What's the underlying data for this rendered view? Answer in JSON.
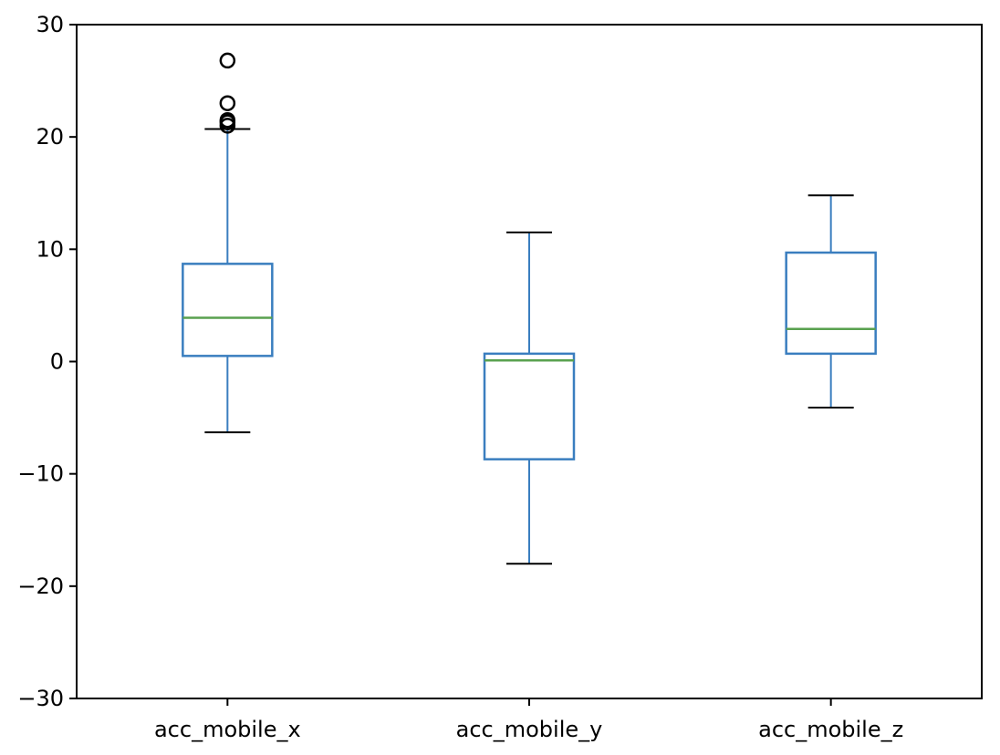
{
  "chart_data": {
    "type": "box",
    "title": "",
    "xlabel": "",
    "ylabel": "",
    "ylim": [
      -30,
      30
    ],
    "yticks": [
      30,
      20,
      10,
      0,
      -10,
      -20,
      -30
    ],
    "ytick_labels": [
      "30",
      "20",
      "10",
      "0",
      "−10",
      "−20",
      "−30"
    ],
    "grid": false,
    "categories": [
      "acc_mobile_x",
      "acc_mobile_y",
      "acc_mobile_z"
    ],
    "boxes": [
      {
        "whislo": -6.3,
        "q1": 0.5,
        "median": 3.9,
        "q3": 8.7,
        "whishi": 20.7,
        "fliers": [
          21.0,
          21.3,
          21.5,
          23.0,
          26.8
        ]
      },
      {
        "whislo": -18.0,
        "q1": -8.7,
        "median": 0.1,
        "q3": 0.7,
        "whishi": 11.5,
        "fliers": []
      },
      {
        "whislo": -4.1,
        "q1": 0.7,
        "median": 2.9,
        "q3": 9.7,
        "whishi": 14.8,
        "fliers": []
      }
    ],
    "colors": {
      "box": "#3a7ebf",
      "median": "#59a14f",
      "whisker": "#3a7ebf",
      "cap": "#000000",
      "flier": "#000000",
      "axes": "#000000"
    }
  }
}
